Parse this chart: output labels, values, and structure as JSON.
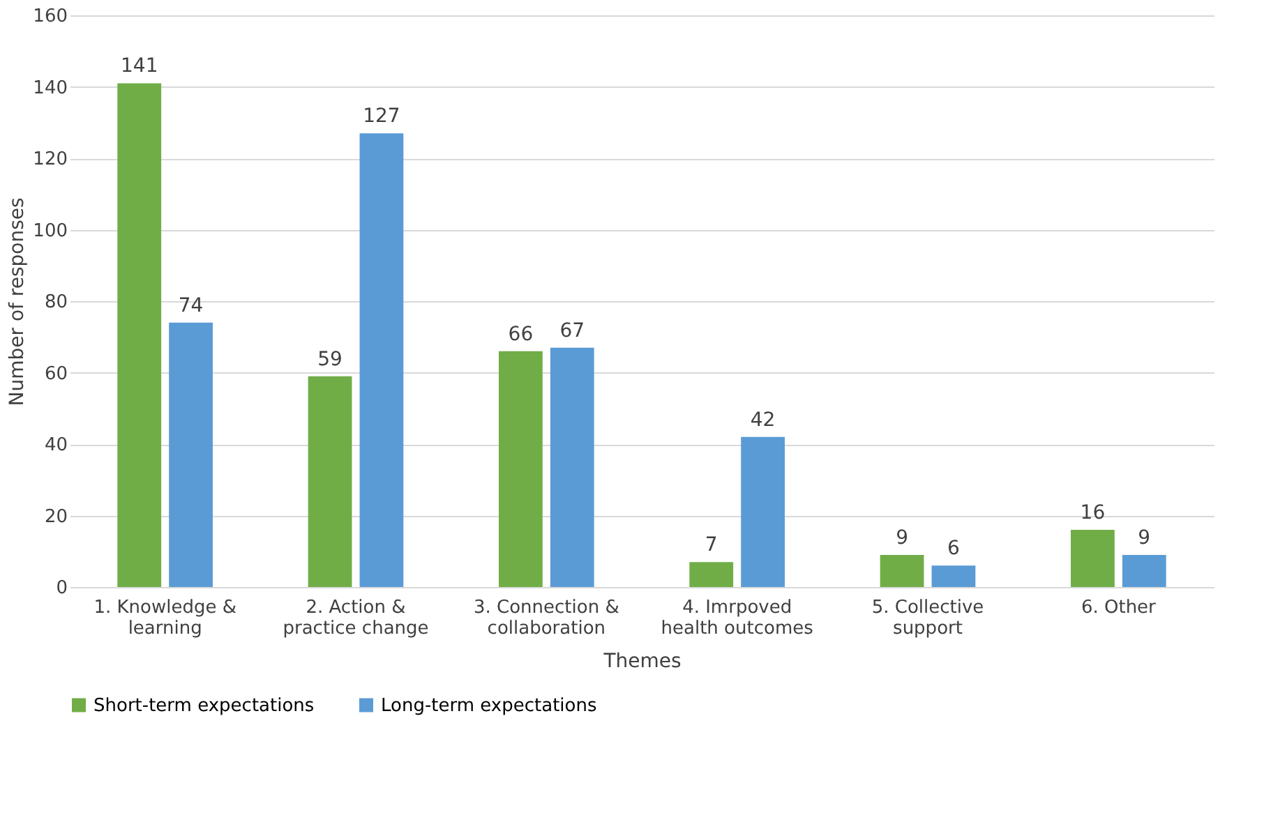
{
  "chart_data": {
    "type": "bar",
    "xlabel": "Themes",
    "ylabel": "Number of responses",
    "categories": [
      "1. Knowledge & learning",
      "2. Action & practice change",
      "3. Connection & collaboration",
      "4. Imrpoved health outcomes",
      "5. Collective support",
      "6. Other"
    ],
    "series": [
      {
        "name": "Short-term expectations",
        "color": "#70ad47",
        "values": [
          141,
          59,
          66,
          7,
          9,
          16
        ]
      },
      {
        "name": "Long-term expectations",
        "color": "#5b9bd5",
        "values": [
          74,
          127,
          67,
          42,
          6,
          9
        ]
      }
    ],
    "ylim": [
      0,
      160
    ],
    "yticks": [
      0,
      20,
      40,
      60,
      80,
      100,
      120,
      140,
      160
    ],
    "grid": "y",
    "legend": "bottom",
    "data_labels": true
  }
}
